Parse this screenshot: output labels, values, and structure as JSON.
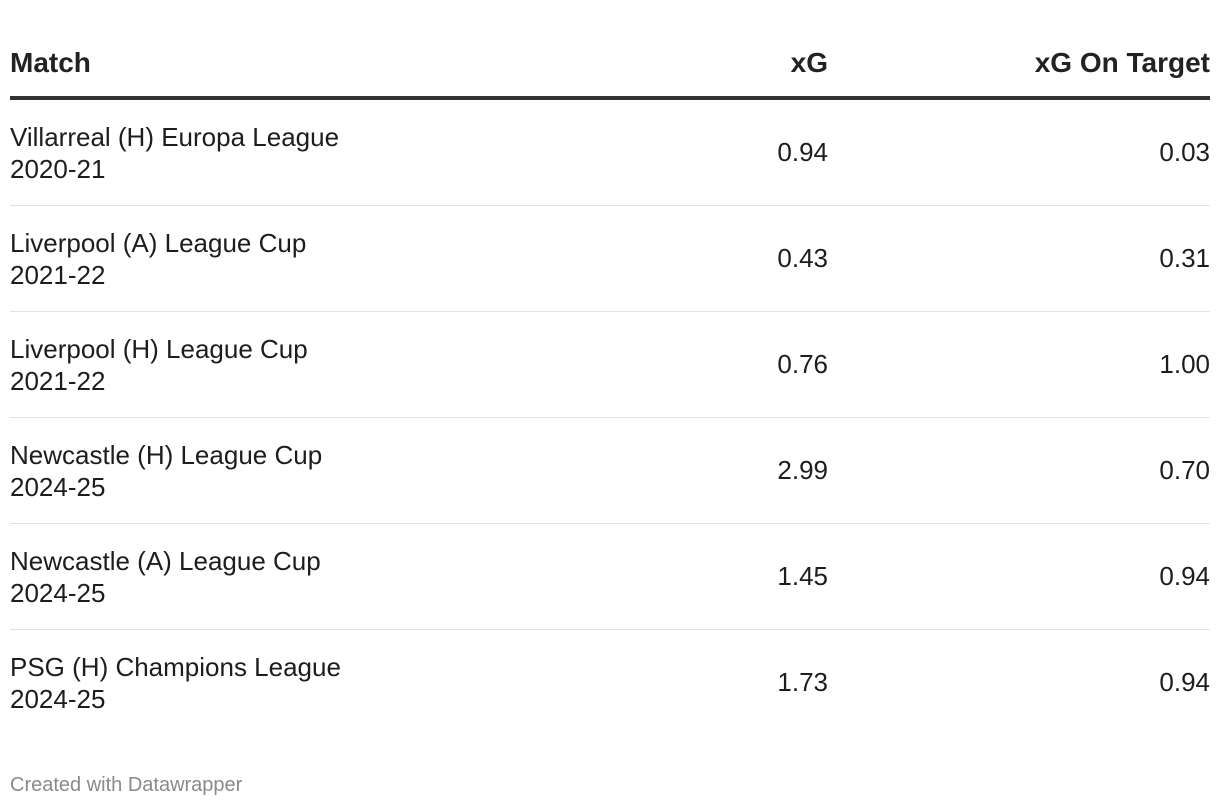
{
  "chart_data": {
    "type": "table",
    "columns": [
      "Match",
      "xG",
      "xG On Target"
    ],
    "rows": [
      {
        "match": "Villarreal (H) Europa League",
        "season": "2020-21",
        "xg": "0.94",
        "xgot": "0.03"
      },
      {
        "match": "Liverpool (A) League Cup",
        "season": "2021-22",
        "xg": "0.43",
        "xgot": "0.31"
      },
      {
        "match": "Liverpool (H) League Cup",
        "season": "2021-22",
        "xg": "0.76",
        "xgot": "1.00"
      },
      {
        "match": "Newcastle (H) League Cup",
        "season": "2024-25",
        "xg": "2.99",
        "xgot": "0.70"
      },
      {
        "match": "Newcastle (A) League Cup",
        "season": "2024-25",
        "xg": "1.45",
        "xgot": "0.94"
      },
      {
        "match": "PSG (H) Champions League",
        "season": "2024-25",
        "xg": "1.73",
        "xgot": "0.94"
      }
    ]
  },
  "footer": {
    "credit": "Created with Datawrapper"
  },
  "colors": {
    "text": "#1d1d1d",
    "header_rule": "#333333",
    "row_rule": "#e2e2e2",
    "credit": "#8a8a8a"
  }
}
